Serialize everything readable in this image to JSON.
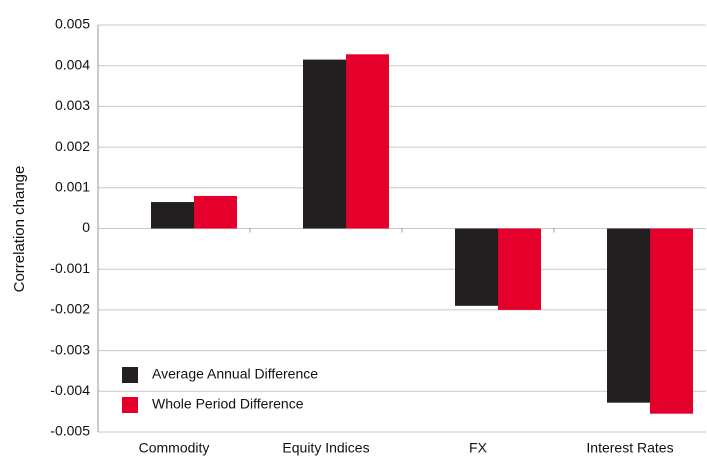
{
  "chart_data": {
    "type": "bar",
    "y_label": "Correlation change",
    "categories": [
      "Commodity",
      "Equity Indices",
      "FX",
      "Interest Rates"
    ],
    "series": [
      {
        "name": "Average Annual Difference",
        "color": "#231f20",
        "values": [
          0.00065,
          0.00415,
          -0.0019,
          -0.00428
        ]
      },
      {
        "name": "Whole Period Difference",
        "color": "#e4002b",
        "values": [
          0.0008,
          0.00428,
          -0.002,
          -0.00455
        ]
      }
    ],
    "ylim": [
      -0.005,
      0.005
    ],
    "yticks": [
      -0.005,
      -0.004,
      -0.003,
      -0.002,
      -0.001,
      0,
      0.001,
      0.002,
      0.003,
      0.004,
      0.005
    ],
    "grid": true,
    "legend": "lower left"
  }
}
